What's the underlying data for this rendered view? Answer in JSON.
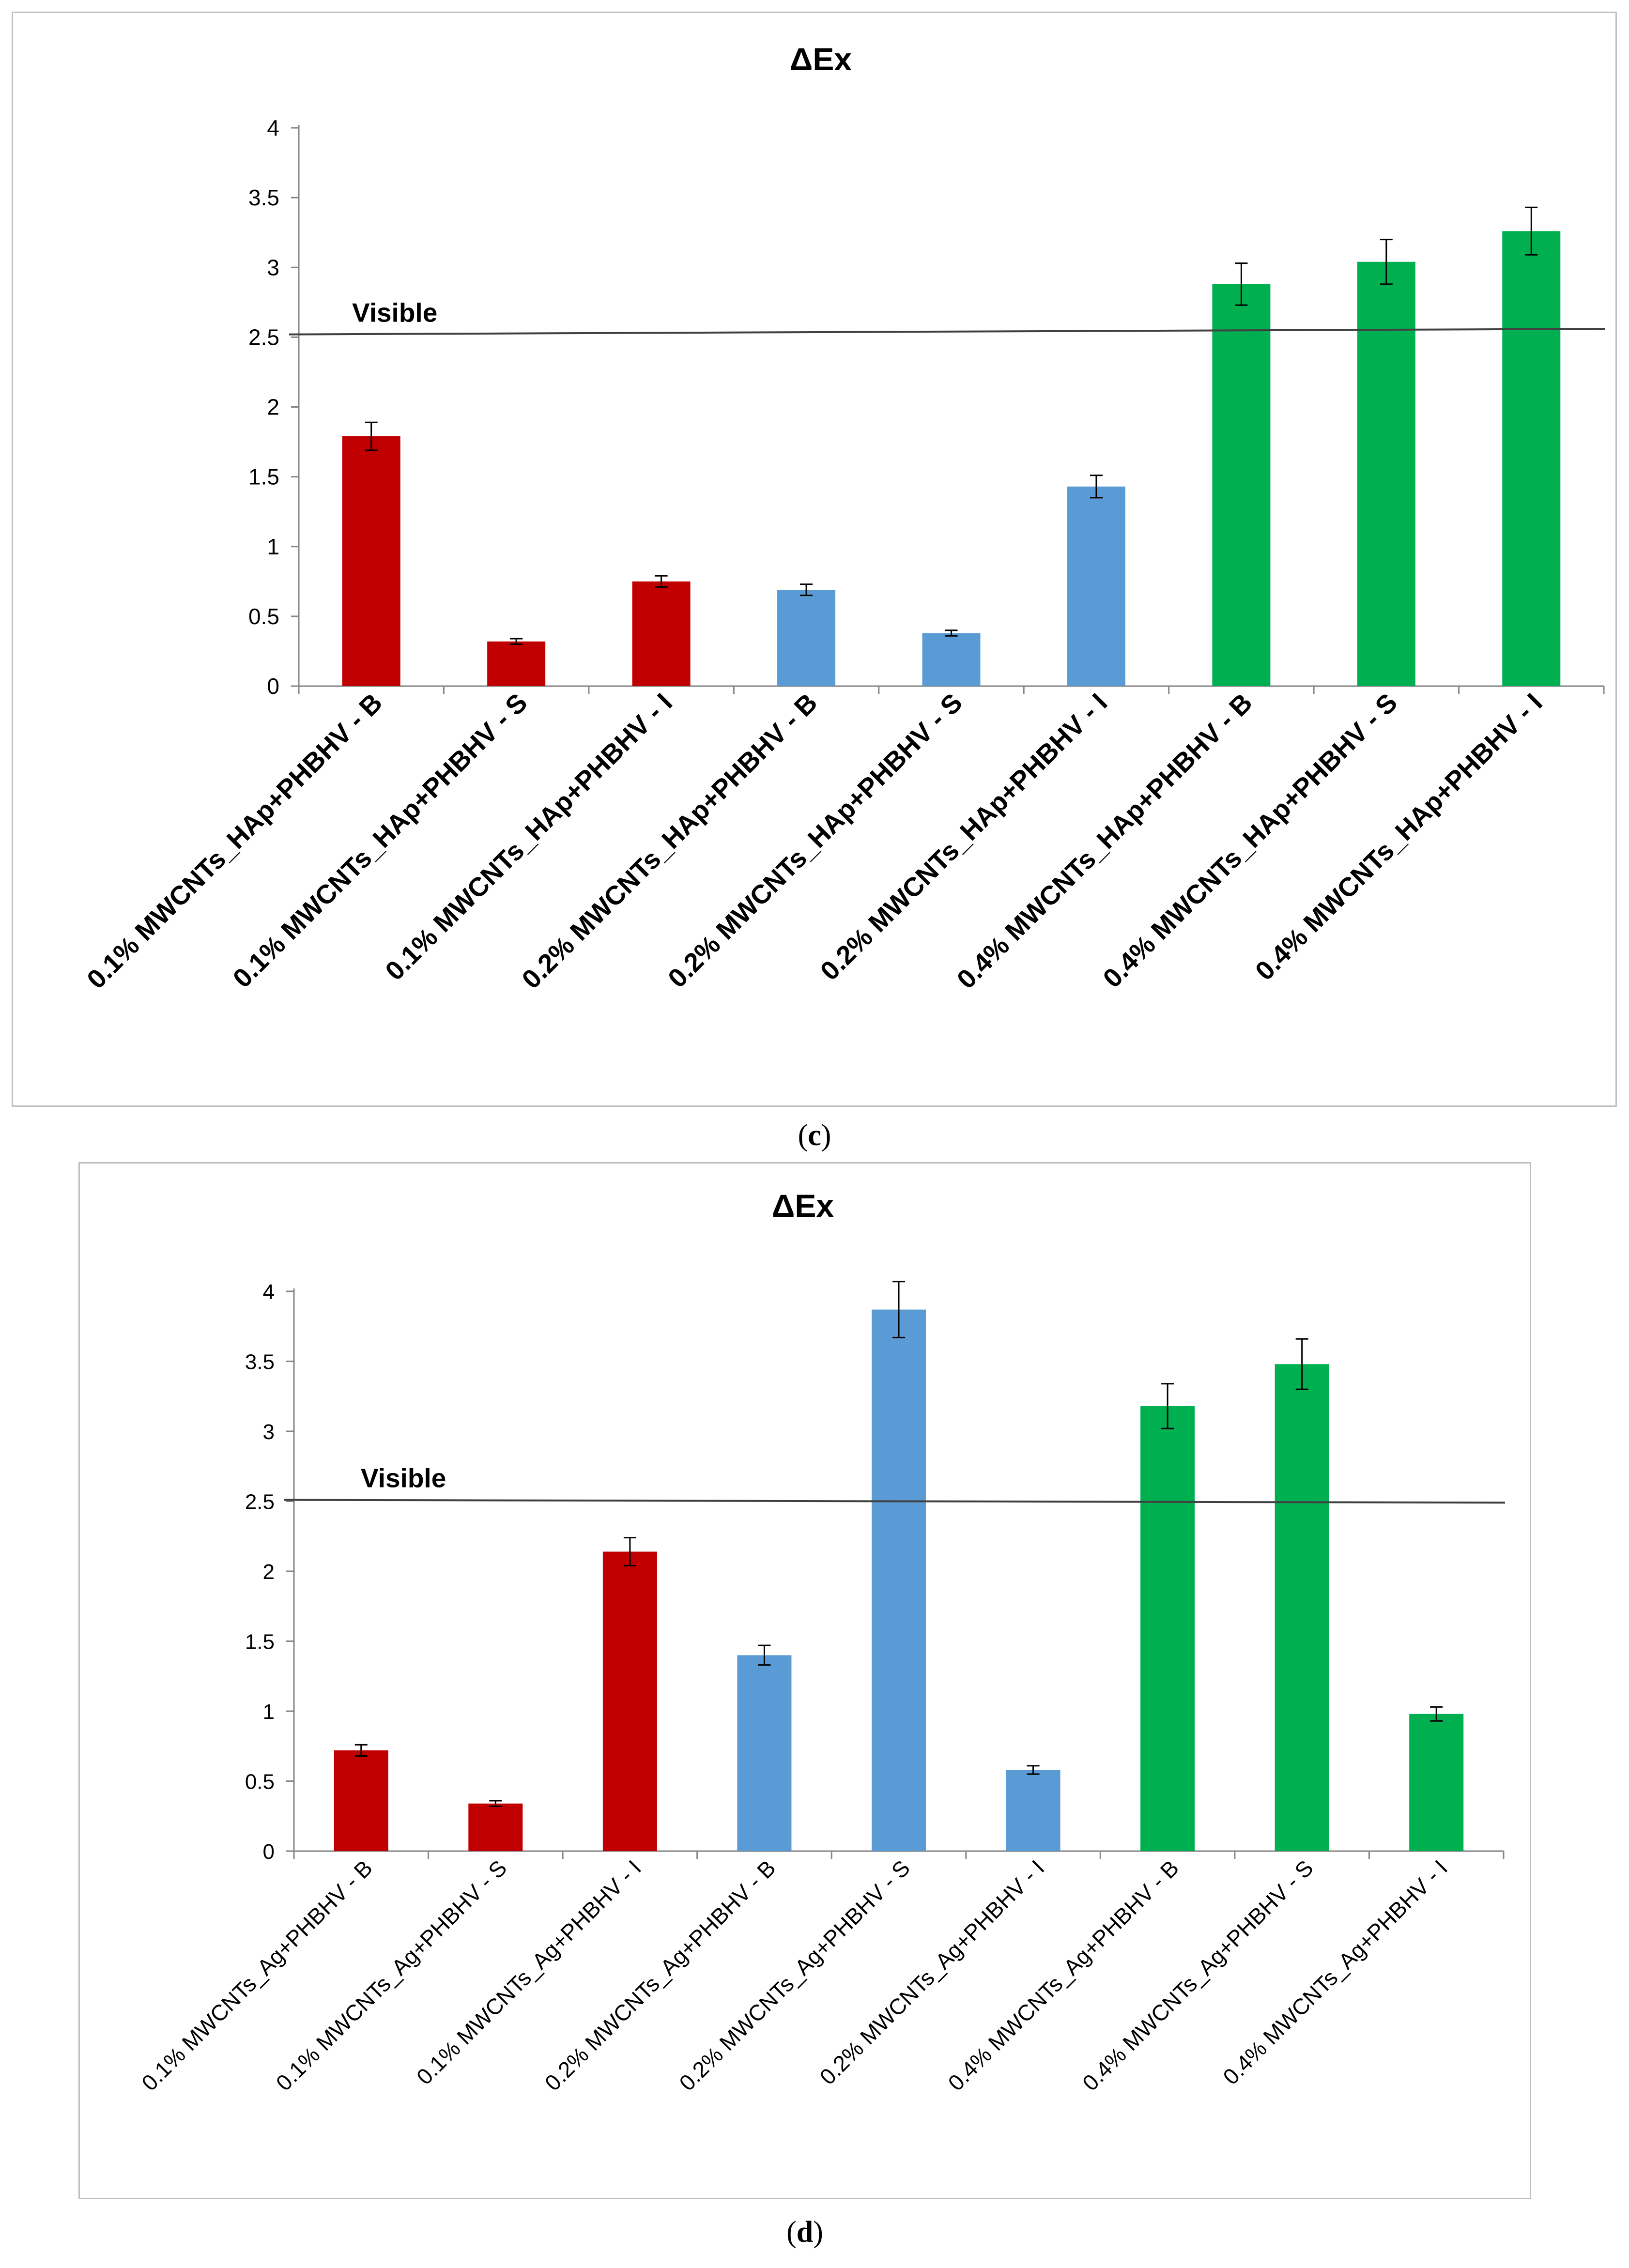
{
  "figure": {
    "panels": [
      {
        "label_open": "(",
        "label_letter": "c",
        "label_close": ")"
      },
      {
        "label_open": "(",
        "label_letter": "d",
        "label_close": ")"
      }
    ]
  },
  "chart_data": [
    {
      "type": "bar",
      "title": "ΔEx",
      "xlabel": "",
      "ylabel": "",
      "ylim": [
        0,
        4
      ],
      "yticks": [
        "0",
        "0.5",
        "1",
        "1.5",
        "2",
        "2.5",
        "3",
        "3.5",
        "4"
      ],
      "categories": [
        "0.1% MWCNTs_HAp+PHBHV - B",
        "0.1% MWCNTs_HAp+PHBHV - S",
        "0.1% MWCNTs_HAp+PHBHV - I",
        "0.2% MWCNTs_HAp+PHBHV - B",
        "0.2% MWCNTs_HAp+PHBHV - S",
        "0.2% MWCNTs_HAp+PHBHV - I",
        "0.4% MWCNTs_HAp+PHBHV - B",
        "0.4% MWCNTs_HAp+PHBHV - S",
        "0.4% MWCNTs_HAp+PHBHV - I"
      ],
      "values": [
        1.79,
        0.32,
        0.75,
        0.69,
        0.38,
        1.43,
        2.88,
        3.04,
        3.26
      ],
      "errors": [
        0.1,
        0.02,
        0.04,
        0.04,
        0.02,
        0.08,
        0.15,
        0.16,
        0.17
      ],
      "colors": [
        "#c00000",
        "#c00000",
        "#c00000",
        "#5b9bd5",
        "#5b9bd5",
        "#5b9bd5",
        "#00b050",
        "#00b050",
        "#00b050"
      ],
      "reference_line": {
        "label": "Visible",
        "y_start": 2.52,
        "y_end": 2.56
      },
      "grid": false,
      "legend": "none"
    },
    {
      "type": "bar",
      "title": "ΔEx",
      "xlabel": "",
      "ylabel": "",
      "ylim": [
        0,
        4
      ],
      "yticks": [
        "0",
        "0.5",
        "1",
        "1.5",
        "2",
        "2.5",
        "3",
        "3.5",
        "4"
      ],
      "categories": [
        "0.1% MWCNTs_Ag+PHBHV - B",
        "0.1% MWCNTs_Ag+PHBHV - S",
        "0.1% MWCNTs_Ag+PHBHV - I",
        "0.2% MWCNTs_Ag+PHBHV - B",
        "0.2% MWCNTs_Ag+PHBHV - S",
        "0.2% MWCNTs_Ag+PHBHV - I",
        "0.4% MWCNTs_Ag+PHBHV - B",
        "0.4% MWCNTs_Ag+PHBHV - S",
        "0.4% MWCNTs_Ag+PHBHV - I"
      ],
      "values": [
        0.72,
        0.34,
        2.14,
        1.4,
        3.87,
        0.58,
        3.18,
        3.48,
        0.98
      ],
      "errors": [
        0.04,
        0.02,
        0.1,
        0.07,
        0.2,
        0.03,
        0.16,
        0.18,
        0.05
      ],
      "colors": [
        "#c00000",
        "#c00000",
        "#c00000",
        "#5b9bd5",
        "#5b9bd5",
        "#5b9bd5",
        "#00b050",
        "#00b050",
        "#00b050"
      ],
      "reference_line": {
        "label": "Visible",
        "y_start": 2.51,
        "y_end": 2.49
      },
      "grid": false,
      "legend": "none"
    }
  ]
}
